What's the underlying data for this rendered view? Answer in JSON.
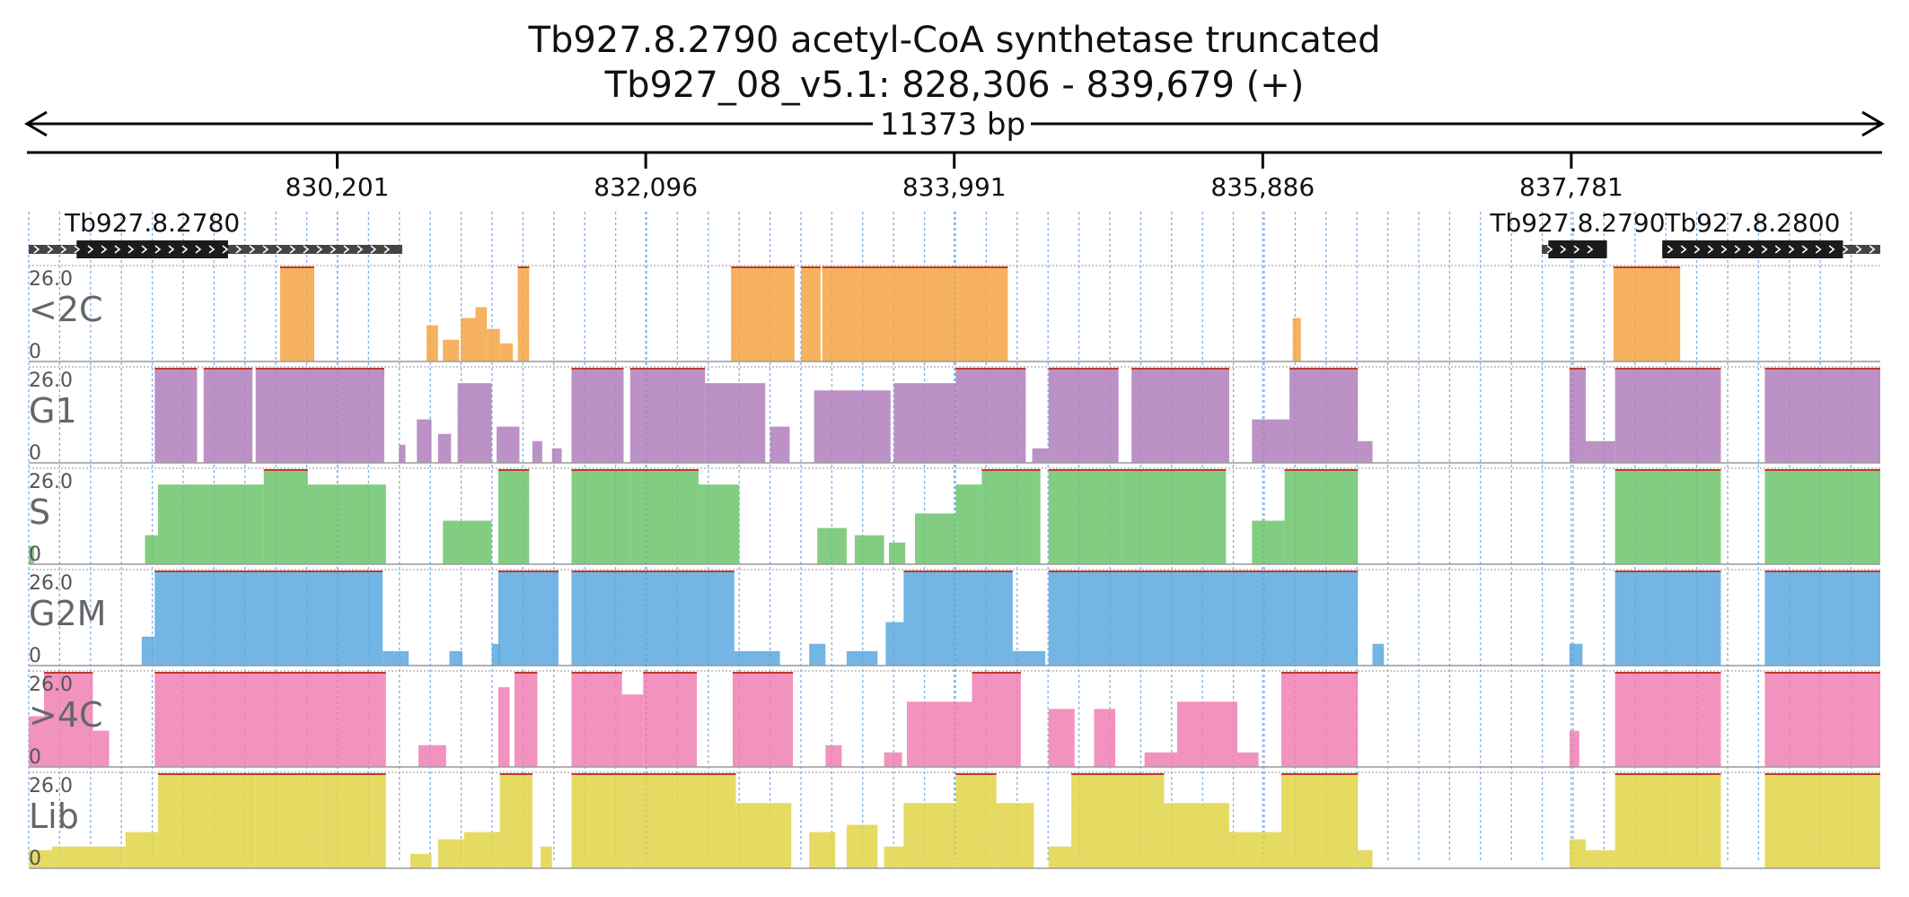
{
  "title": "Tb927.8.2790  acetyl-CoA synthetase  truncated",
  "subtitle": "Tb927_08_v5.1: 828,306 - 839,679 (+)",
  "span_label": "11373 bp",
  "chart_data": {
    "type": "area",
    "region": {
      "chrom": "Tb927_08_v5.1",
      "start": 828306,
      "end": 839679,
      "strand": "+"
    },
    "ticks": [
      {
        "pos": 830201,
        "label": "830,201"
      },
      {
        "pos": 832096,
        "label": "832,096"
      },
      {
        "pos": 833991,
        "label": "833,991"
      },
      {
        "pos": 835886,
        "label": "835,886"
      },
      {
        "pos": 837781,
        "label": "837,781"
      }
    ],
    "genes": [
      {
        "name": "Tb927.8.2780",
        "start": 828306,
        "end": 830600,
        "cds_start": 828600,
        "cds_end": 829530
      },
      {
        "name": "Tb927.8.2790",
        "start": 837600,
        "end": 838000,
        "cds_start": 837640,
        "cds_end": 838000
      },
      {
        "name": "Tb927.8.2800",
        "start": 838340,
        "end": 839679,
        "cds_start": 838340,
        "cds_end": 839450
      }
    ],
    "ymax": 26.0,
    "ymax_label": "26.0",
    "ymin_label": "0",
    "grid_x": true,
    "tracks": [
      {
        "name": "<2C",
        "color": "#f5a442",
        "segments": [
          [
            829850,
            830060,
            26
          ],
          [
            830750,
            830820,
            10
          ],
          [
            830850,
            830950,
            6
          ],
          [
            830960,
            831050,
            12
          ],
          [
            831050,
            831120,
            15
          ],
          [
            831120,
            831200,
            9
          ],
          [
            831200,
            831280,
            5
          ],
          [
            831310,
            831380,
            28
          ],
          [
            832620,
            833010,
            26
          ],
          [
            833050,
            833170,
            26
          ],
          [
            833180,
            834320,
            26
          ],
          [
            836070,
            836120,
            12
          ],
          [
            838040,
            838450,
            26
          ]
        ]
      },
      {
        "name": "G1",
        "color": "#b07fbc",
        "segments": [
          [
            829080,
            829340,
            26
          ],
          [
            829380,
            829680,
            26
          ],
          [
            829700,
            830490,
            26
          ],
          [
            830580,
            830620,
            5
          ],
          [
            830690,
            830780,
            12
          ],
          [
            830820,
            830900,
            8
          ],
          [
            830940,
            831150,
            22
          ],
          [
            831180,
            831320,
            10
          ],
          [
            831400,
            831460,
            6
          ],
          [
            831520,
            831580,
            4
          ],
          [
            831640,
            831960,
            26
          ],
          [
            832000,
            832460,
            26
          ],
          [
            832460,
            832830,
            22
          ],
          [
            832860,
            832980,
            10
          ],
          [
            833130,
            833600,
            20
          ],
          [
            833620,
            834000,
            22
          ],
          [
            834000,
            834430,
            26
          ],
          [
            834470,
            834570,
            4
          ],
          [
            834570,
            835000,
            26
          ],
          [
            835080,
            835680,
            26
          ],
          [
            835820,
            836050,
            12
          ],
          [
            836050,
            836470,
            26
          ],
          [
            836470,
            836560,
            6
          ],
          [
            837770,
            837870,
            26
          ],
          [
            837870,
            838050,
            6
          ],
          [
            838050,
            838700,
            26
          ],
          [
            838970,
            839679,
            26
          ]
        ]
      },
      {
        "name": "S",
        "color": "#6cc46c",
        "segments": [
          [
            828306,
            828340,
            5
          ],
          [
            829020,
            829100,
            8
          ],
          [
            829100,
            829750,
            22
          ],
          [
            829750,
            830020,
            26
          ],
          [
            830020,
            830500,
            22
          ],
          [
            830850,
            831150,
            12
          ],
          [
            831190,
            831380,
            26
          ],
          [
            831640,
            832000,
            26
          ],
          [
            832000,
            832420,
            26
          ],
          [
            832420,
            832670,
            22
          ],
          [
            833150,
            833330,
            10
          ],
          [
            833380,
            833560,
            8
          ],
          [
            833590,
            833690,
            6
          ],
          [
            833750,
            834000,
            14
          ],
          [
            834000,
            834160,
            22
          ],
          [
            834160,
            834520,
            26
          ],
          [
            834570,
            835020,
            26
          ],
          [
            835020,
            835660,
            26
          ],
          [
            835820,
            836020,
            12
          ],
          [
            836020,
            836470,
            26
          ],
          [
            838050,
            838700,
            26
          ],
          [
            838970,
            839679,
            26
          ]
        ]
      },
      {
        "name": "G2M",
        "color": "#5aa8df",
        "segments": [
          [
            829000,
            829080,
            8
          ],
          [
            829080,
            829720,
            26
          ],
          [
            829720,
            830480,
            26
          ],
          [
            830480,
            830640,
            4
          ],
          [
            830890,
            830970,
            4
          ],
          [
            831150,
            831200,
            6
          ],
          [
            831190,
            831560,
            26
          ],
          [
            831640,
            832000,
            26
          ],
          [
            832000,
            832640,
            26
          ],
          [
            832640,
            832920,
            4
          ],
          [
            833100,
            833200,
            6
          ],
          [
            833330,
            833520,
            4
          ],
          [
            833570,
            833680,
            12
          ],
          [
            833680,
            834000,
            26
          ],
          [
            834000,
            834350,
            26
          ],
          [
            834350,
            834550,
            4
          ],
          [
            834570,
            835560,
            26
          ],
          [
            835560,
            836470,
            26
          ],
          [
            836560,
            836630,
            6
          ],
          [
            837770,
            837850,
            6
          ],
          [
            838050,
            838700,
            26
          ],
          [
            838970,
            839679,
            26
          ]
        ]
      },
      {
        "name": ">4C",
        "color": "#f07fb3",
        "segments": [
          [
            828306,
            828400,
            14
          ],
          [
            828400,
            828700,
            26
          ],
          [
            828700,
            828800,
            10
          ],
          [
            829080,
            830200,
            26
          ],
          [
            830200,
            830500,
            26
          ],
          [
            830700,
            830870,
            6
          ],
          [
            831190,
            831260,
            22
          ],
          [
            831290,
            831430,
            26
          ],
          [
            831640,
            831950,
            26
          ],
          [
            831950,
            832080,
            20
          ],
          [
            832080,
            832410,
            26
          ],
          [
            832630,
            833000,
            26
          ],
          [
            833200,
            833300,
            6
          ],
          [
            833560,
            833670,
            4
          ],
          [
            833700,
            834100,
            18
          ],
          [
            834100,
            834400,
            26
          ],
          [
            834570,
            834730,
            16
          ],
          [
            834850,
            834980,
            16
          ],
          [
            835160,
            835360,
            4
          ],
          [
            835360,
            835730,
            18
          ],
          [
            835730,
            835860,
            4
          ],
          [
            836000,
            836470,
            26
          ],
          [
            837770,
            837830,
            10
          ],
          [
            838050,
            838700,
            26
          ],
          [
            838970,
            839679,
            26
          ]
        ]
      },
      {
        "name": "Lib",
        "color": "#e0d548",
        "segments": [
          [
            828306,
            828450,
            5
          ],
          [
            828450,
            828900,
            6
          ],
          [
            828900,
            829100,
            10
          ],
          [
            829100,
            829700,
            26
          ],
          [
            829700,
            830100,
            26
          ],
          [
            830100,
            830500,
            26
          ],
          [
            830650,
            830780,
            4
          ],
          [
            830820,
            830980,
            8
          ],
          [
            830980,
            831200,
            10
          ],
          [
            831200,
            831400,
            26
          ],
          [
            831450,
            831520,
            6
          ],
          [
            831640,
            832000,
            26
          ],
          [
            832000,
            832650,
            26
          ],
          [
            832650,
            832990,
            18
          ],
          [
            833100,
            833260,
            10
          ],
          [
            833330,
            833520,
            12
          ],
          [
            833560,
            833680,
            6
          ],
          [
            833680,
            834000,
            18
          ],
          [
            834000,
            834250,
            26
          ],
          [
            834250,
            834480,
            18
          ],
          [
            834570,
            834710,
            6
          ],
          [
            834710,
            835280,
            26
          ],
          [
            835280,
            835680,
            18
          ],
          [
            835680,
            836000,
            10
          ],
          [
            836000,
            836470,
            26
          ],
          [
            836470,
            836560,
            5
          ],
          [
            837770,
            837870,
            8
          ],
          [
            837870,
            838050,
            5
          ],
          [
            838050,
            838700,
            26
          ],
          [
            838970,
            839679,
            26
          ]
        ]
      }
    ]
  }
}
